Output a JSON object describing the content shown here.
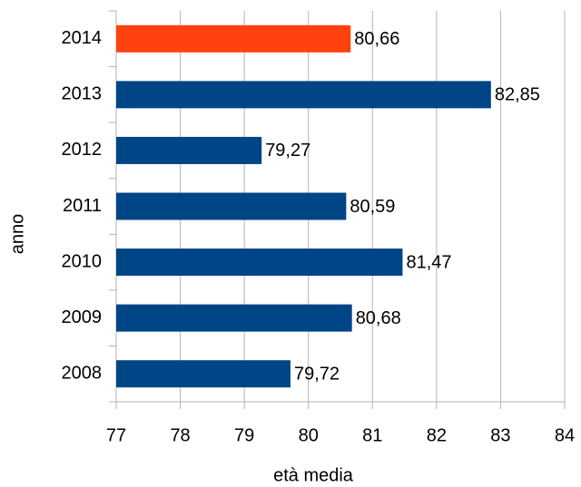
{
  "chart_data": {
    "type": "barh",
    "categories": [
      "2014",
      "2013",
      "2012",
      "2011",
      "2010",
      "2009",
      "2008"
    ],
    "values": [
      80.66,
      82.85,
      79.27,
      80.59,
      81.47,
      80.68,
      79.72
    ],
    "value_labels": [
      "80,66",
      "82,85",
      "79,27",
      "80,59",
      "81,47",
      "80,68",
      "79,72"
    ],
    "colors": [
      "#ff420e",
      "#004586",
      "#004586",
      "#004586",
      "#004586",
      "#004586",
      "#004586"
    ],
    "xlim": [
      77,
      84
    ],
    "xticks": [
      77,
      78,
      79,
      80,
      81,
      82,
      83,
      84
    ],
    "xlabel": "età media",
    "ylabel": "anno",
    "grid": true
  }
}
